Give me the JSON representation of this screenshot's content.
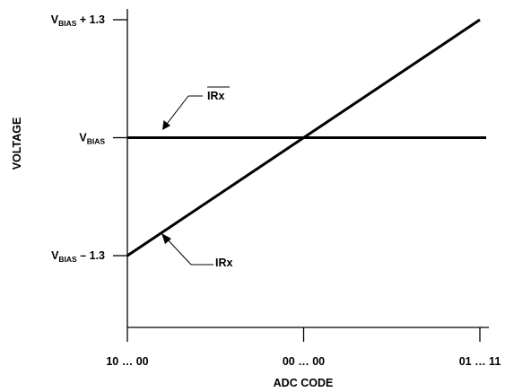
{
  "chart_data": {
    "type": "line",
    "xlabel": "ADC CODE",
    "ylabel": "VOLTAGE",
    "x_ticks": [
      {
        "code": "10 … 00",
        "value": -1
      },
      {
        "code": "00 … 00",
        "value": 0
      },
      {
        "code": "01 … 11",
        "value": 1
      }
    ],
    "y_ticks": [
      {
        "base": "V",
        "sub": "BIAS",
        "suffix": " + 1.3",
        "value": 1.3
      },
      {
        "base": "V",
        "sub": "BIAS",
        "suffix": "",
        "value": 0
      },
      {
        "base": "V",
        "sub": "BIAS",
        "suffix": " – 1.3",
        "value": -1.3
      }
    ],
    "xlim": [
      -1,
      1
    ],
    "ylim": [
      -2.15,
      1.3
    ],
    "grid": false,
    "series": [
      {
        "name": "IRx",
        "overbar": true,
        "x": [
          -1,
          1
        ],
        "y": [
          0,
          0
        ],
        "color": "#000000"
      },
      {
        "name": "IRx",
        "overbar": false,
        "x": [
          -1,
          1
        ],
        "y": [
          -1.3,
          1.3
        ],
        "color": "#000000"
      }
    ]
  }
}
